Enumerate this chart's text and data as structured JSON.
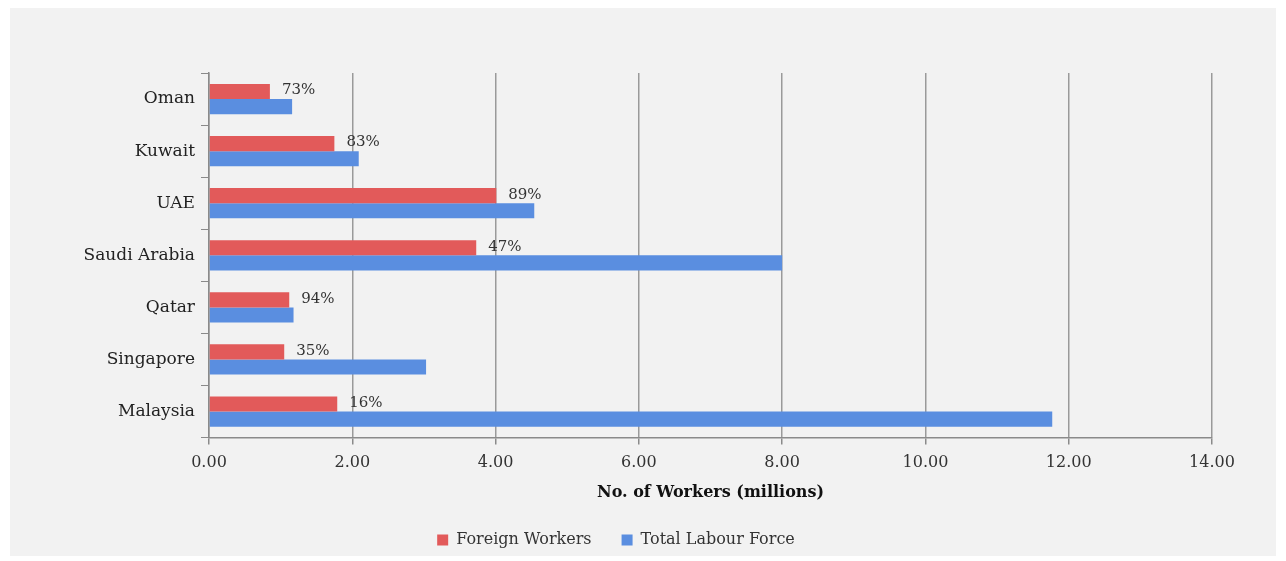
{
  "chart_data": {
    "type": "bar",
    "orientation": "horizontal",
    "categories": [
      "Oman",
      "Kuwait",
      "UAE",
      "Saudi Arabia",
      "Qatar",
      "Singapore",
      "Malaysia"
    ],
    "series": [
      {
        "name": "Foreign Workers",
        "color": "#e25a5a",
        "values": [
          0.85,
          1.75,
          4.01,
          3.73,
          1.12,
          1.05,
          1.79
        ]
      },
      {
        "name": "Total Labour Force",
        "color": "#5a8ee0",
        "values": [
          1.16,
          2.09,
          4.54,
          8.0,
          1.18,
          3.03,
          11.77
        ]
      }
    ],
    "annotations": [
      {
        "text": "73%",
        "x": 0.85,
        "y": "Oman"
      },
      {
        "text": "83%",
        "x": 1.75,
        "y": "Kuwait"
      },
      {
        "text": "89%",
        "x": 4.01,
        "y": "UAE"
      },
      {
        "text": "47%",
        "x": 3.73,
        "y": "Saudi Arabia"
      },
      {
        "text": "94%",
        "x": 1.12,
        "y": "Qatar"
      },
      {
        "text": "35%",
        "x": 1.05,
        "y": "Singapore"
      },
      {
        "text": "16%",
        "x": 1.79,
        "y": "Malaysia"
      }
    ],
    "xlabel": "No. of Workers (millions)",
    "xlim": [
      0,
      14
    ],
    "xticks": [
      {
        "value": 0,
        "label": "0.00"
      },
      {
        "value": 2,
        "label": "2.00"
      },
      {
        "value": 4,
        "label": "4.00"
      },
      {
        "value": 6,
        "label": "6.00"
      },
      {
        "value": 8,
        "label": "8.00"
      },
      {
        "value": 10,
        "label": "10.00"
      },
      {
        "value": 12,
        "label": "12.00"
      },
      {
        "value": 14,
        "label": "14.00"
      }
    ],
    "grid": "x",
    "legend": "bottom"
  }
}
